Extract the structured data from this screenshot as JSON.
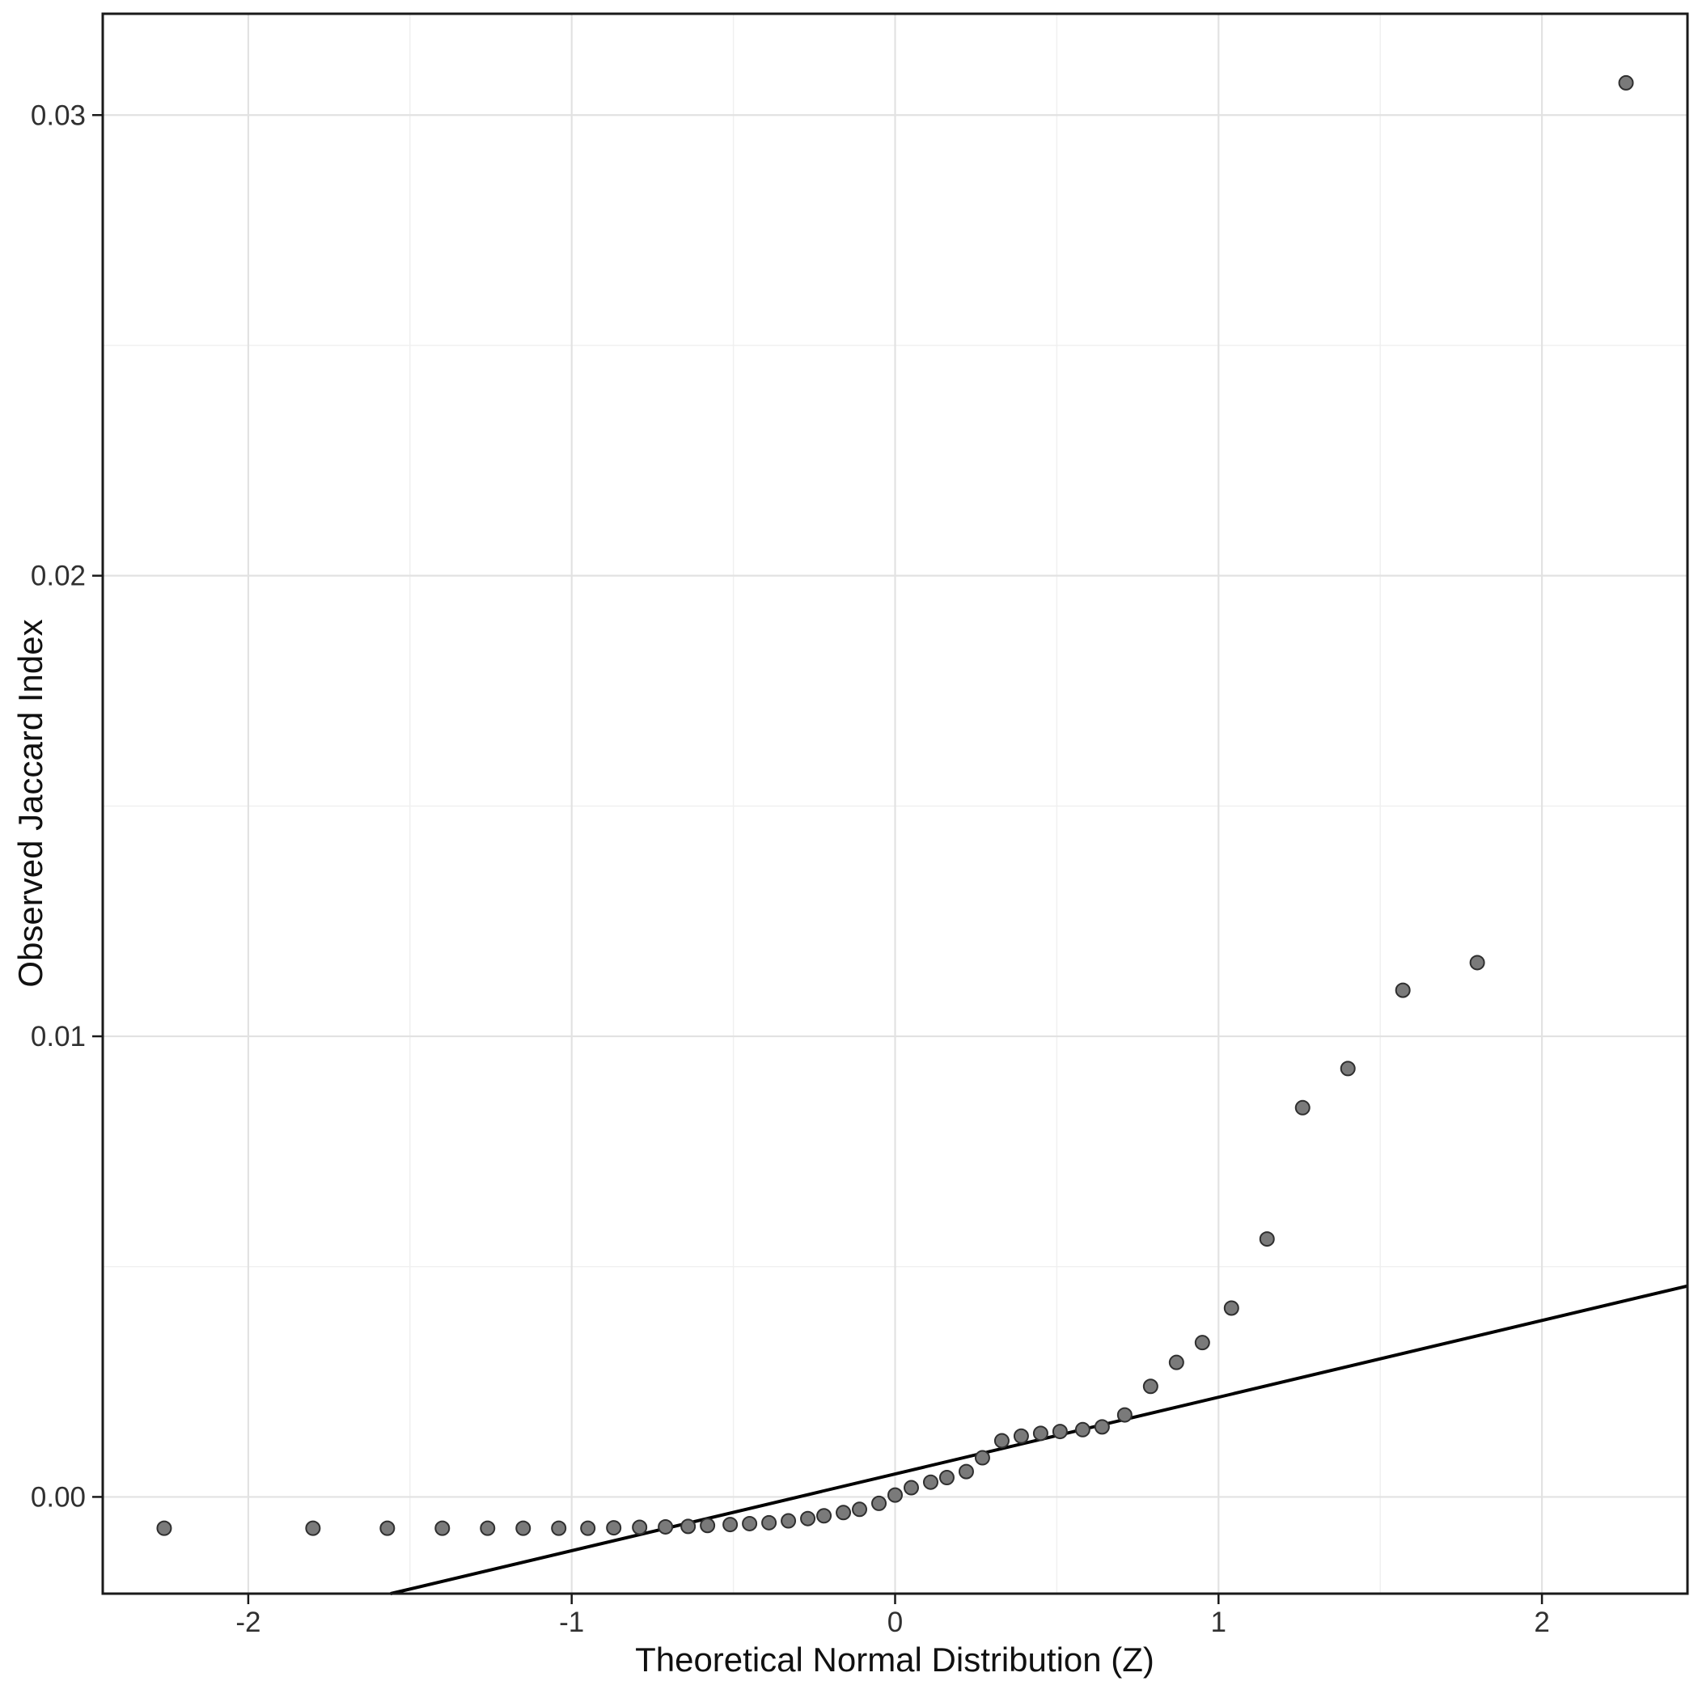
{
  "figure": {
    "background": "#ffffff"
  },
  "chart_data": {
    "type": "scatter",
    "title": "",
    "xlabel": "Theoretical Normal Distribution (Z)",
    "ylabel": "Observed Jaccard Index",
    "xlim": [
      -2.45,
      2.45
    ],
    "ylim": [
      -0.0021,
      0.0322
    ],
    "grid": true,
    "legend_position": "none",
    "x_ticks": [
      -2,
      -1,
      0,
      1,
      2
    ],
    "x_tick_labels": [
      "-2",
      "-1",
      "0",
      "1",
      "2"
    ],
    "y_ticks": [
      0.0,
      0.01,
      0.02,
      0.03
    ],
    "y_tick_labels": [
      "0.00",
      "0.01",
      "0.02",
      "0.03"
    ],
    "x_minor_ticks": [
      -1.5,
      -0.5,
      0.5,
      1.5
    ],
    "y_minor_ticks": [
      0.005,
      0.015,
      0.025
    ],
    "points": [
      [
        -2.26,
        -0.00068
      ],
      [
        -1.8,
        -0.00068
      ],
      [
        -1.57,
        -0.00068
      ],
      [
        -1.4,
        -0.00068
      ],
      [
        -1.26,
        -0.00068
      ],
      [
        -1.15,
        -0.00068
      ],
      [
        -1.04,
        -0.00068
      ],
      [
        -0.95,
        -0.00068
      ],
      [
        -0.87,
        -0.00067
      ],
      [
        -0.79,
        -0.00066
      ],
      [
        -0.71,
        -0.00065
      ],
      [
        -0.64,
        -0.00064
      ],
      [
        -0.58,
        -0.00062
      ],
      [
        -0.51,
        -0.0006
      ],
      [
        -0.45,
        -0.00058
      ],
      [
        -0.39,
        -0.00056
      ],
      [
        -0.33,
        -0.00052
      ],
      [
        -0.27,
        -0.00047
      ],
      [
        -0.22,
        -0.00041
      ],
      [
        -0.16,
        -0.00034
      ],
      [
        -0.11,
        -0.00027
      ],
      [
        -0.05,
        -0.00014
      ],
      [
        0.0,
        4e-05
      ],
      [
        0.05,
        0.0002
      ],
      [
        0.11,
        0.00032
      ],
      [
        0.16,
        0.00042
      ],
      [
        0.22,
        0.00055
      ],
      [
        0.27,
        0.00085
      ],
      [
        0.33,
        0.00122
      ],
      [
        0.39,
        0.00132
      ],
      [
        0.45,
        0.00138
      ],
      [
        0.51,
        0.00142
      ],
      [
        0.58,
        0.00146
      ],
      [
        0.64,
        0.00152
      ],
      [
        0.71,
        0.00178
      ],
      [
        0.79,
        0.0024
      ],
      [
        0.87,
        0.00292
      ],
      [
        0.95,
        0.00335
      ],
      [
        1.04,
        0.0041
      ],
      [
        1.15,
        0.0056
      ],
      [
        1.26,
        0.00845
      ],
      [
        1.4,
        0.0093
      ],
      [
        1.57,
        0.011
      ],
      [
        1.8,
        0.0116
      ],
      [
        2.26,
        0.0307
      ]
    ],
    "qq_line": {
      "x1": -1.56,
      "y1": -0.0021,
      "x2": 2.45,
      "y2": 0.00458
    },
    "style": {
      "point_fill": "#7a7a7a",
      "point_stroke": "#2f2f2f",
      "point_radius": 8.5,
      "line_color": "#000000",
      "line_width": 4,
      "grid_major_color": "#e2e2e2",
      "grid_minor_color": "#f0f0f0",
      "panel_border_color": "#1a1a1a",
      "tick_color": "#1a1a1a",
      "tick_label_color": "#303030"
    }
  }
}
